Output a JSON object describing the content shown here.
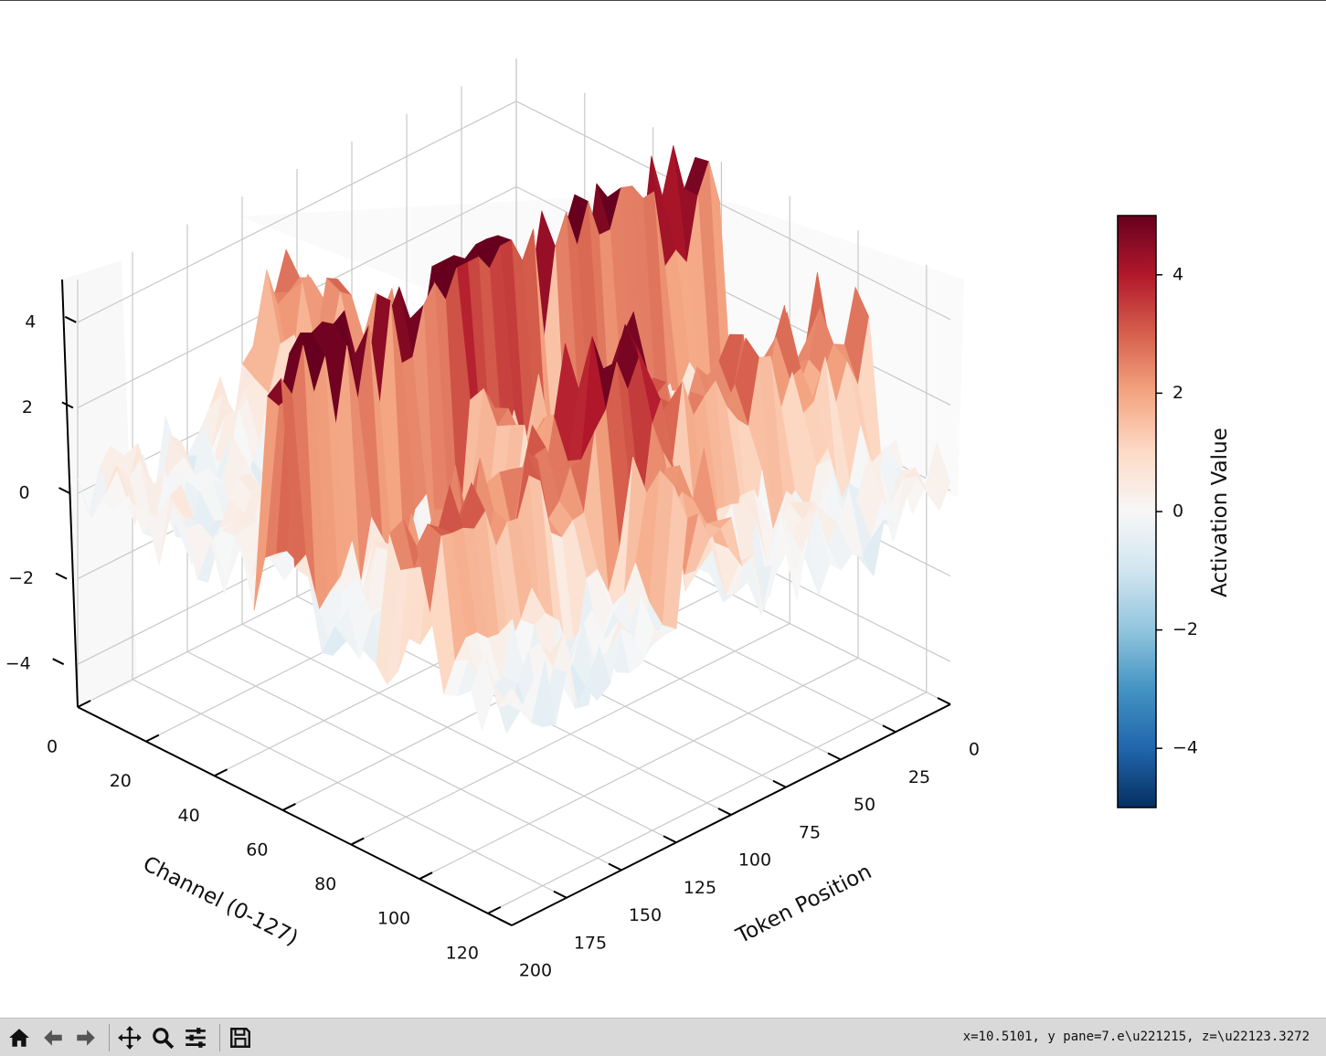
{
  "chart_data": {
    "type": "surface",
    "colormap": "RdBu_r",
    "x_axis": {
      "label": "Token Position",
      "range": [
        0,
        200
      ],
      "ticks": [
        "0",
        "25",
        "50",
        "75",
        "100",
        "125",
        "150",
        "175",
        "200"
      ]
    },
    "y_axis": {
      "label": "Channel (0-127)",
      "range": [
        0,
        127
      ],
      "ticks": [
        "0",
        "20",
        "40",
        "60",
        "80",
        "100",
        "120"
      ]
    },
    "z_axis": {
      "label": "",
      "range": [
        -5,
        5
      ],
      "ticks": [
        "−4",
        "−2",
        "0",
        "2",
        "4"
      ]
    },
    "colorbar": {
      "label": "Activation Value",
      "range": [
        -5,
        5
      ],
      "ticks": [
        "4",
        "2",
        "0",
        "−2",
        "−4"
      ]
    },
    "surface_features": [
      {
        "description_of_shape": "high-activation ridge",
        "channel_range": [
          55,
          60
        ],
        "token_range": [
          0,
          200
        ],
        "z_approx": 5
      },
      {
        "description_of_shape": "elevated band",
        "channel_range": [
          90,
          105
        ],
        "token_range": [
          0,
          200
        ],
        "z_approx": 2.5
      },
      {
        "description_of_shape": "elevated band",
        "channel_range": [
          0,
          127
        ],
        "token_range": [
          95,
          120
        ],
        "z_approx": 2
      },
      {
        "description_of_shape": "background noise",
        "channel_range": [
          0,
          127
        ],
        "token_range": [
          0,
          200
        ],
        "z_approx": 0
      }
    ],
    "grid": true
  },
  "toolbar": {
    "icons": [
      "home-icon",
      "back-arrow-icon",
      "forward-arrow-icon",
      "pan-icon",
      "zoom-icon",
      "configure-icon",
      "save-icon"
    ],
    "coord_readout": "x=10.5101, y pane=7.e\\u221215, z=\\u22123.3272"
  }
}
